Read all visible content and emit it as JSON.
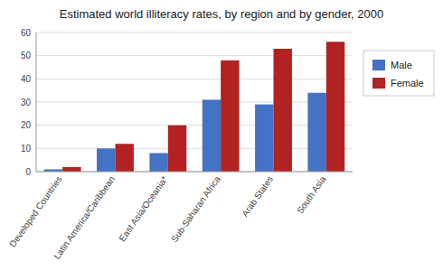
{
  "chart_data": {
    "type": "bar",
    "title": "Estimated world illiteracy rates, by region and by gender, 2000",
    "categories": [
      "Developed Countries",
      "Latin America/Caribbean",
      "East Asia/Oceania*",
      "Sub-Saharan Africa",
      "Arab States",
      "South Asia"
    ],
    "series": [
      {
        "name": "Male",
        "color": "#4472C4",
        "values": [
          1,
          10,
          8,
          31,
          29,
          34
        ]
      },
      {
        "name": "Female",
        "color": "#B22222",
        "values": [
          2,
          12,
          20,
          48,
          53,
          56
        ]
      }
    ],
    "ylim": [
      0,
      60
    ],
    "yticks": [
      0,
      10,
      20,
      30,
      40,
      50,
      60
    ],
    "grid": true,
    "legend": "right"
  }
}
